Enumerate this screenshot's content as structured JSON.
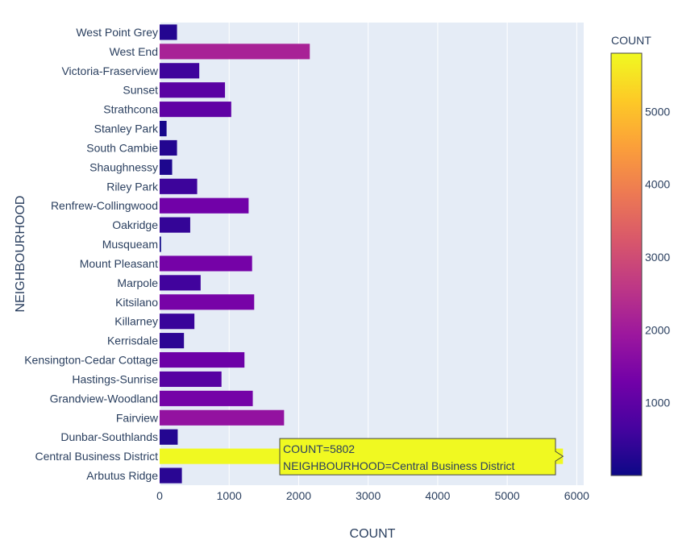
{
  "chart_data": {
    "type": "bar",
    "orientation": "horizontal",
    "xlabel": "COUNT",
    "ylabel": "NEIGHBOURHOOD",
    "xlim": [
      0,
      6100
    ],
    "x_ticks": [
      0,
      1000,
      2000,
      3000,
      4000,
      5000,
      6000
    ],
    "categories": [
      "West Point Grey",
      "West End",
      "Victoria-Fraserview",
      "Sunset",
      "Strathcona",
      "Stanley Park",
      "South Cambie",
      "Shaughnessy",
      "Riley Park",
      "Renfrew-Collingwood",
      "Oakridge",
      "Musqueam",
      "Mount Pleasant",
      "Marpole",
      "Kitsilano",
      "Killarney",
      "Kerrisdale",
      "Kensington-Cedar Cottage",
      "Hastings-Sunrise",
      "Grandview-Woodland",
      "Fairview",
      "Dunbar-Southlands",
      "Central Business District",
      "Arbutus Ridge"
    ],
    "values": [
      250,
      2160,
      570,
      940,
      1030,
      100,
      250,
      180,
      540,
      1280,
      440,
      20,
      1330,
      590,
      1360,
      500,
      350,
      1220,
      890,
      1340,
      1790,
      260,
      5802,
      320
    ],
    "colorbar": {
      "title": "COUNT",
      "range": [
        0,
        5802
      ],
      "tick_values": [
        1000,
        2000,
        3000,
        4000,
        5000
      ],
      "tick_labels": [
        "1000",
        "2000",
        "3000",
        "4000",
        "5000"
      ],
      "colorscale": [
        "#0d0887",
        "#46039f",
        "#7201a8",
        "#9c179e",
        "#bd3786",
        "#d8576b",
        "#ed7953",
        "#fb9f3a",
        "#fdca26",
        "#f0f921"
      ]
    },
    "grid": true,
    "plot_background": "#e5ecf6",
    "tooltip": {
      "category": "Central Business District",
      "lines": [
        "COUNT=5802",
        "NEIGHBOURHOOD=Central Business District"
      ]
    }
  }
}
